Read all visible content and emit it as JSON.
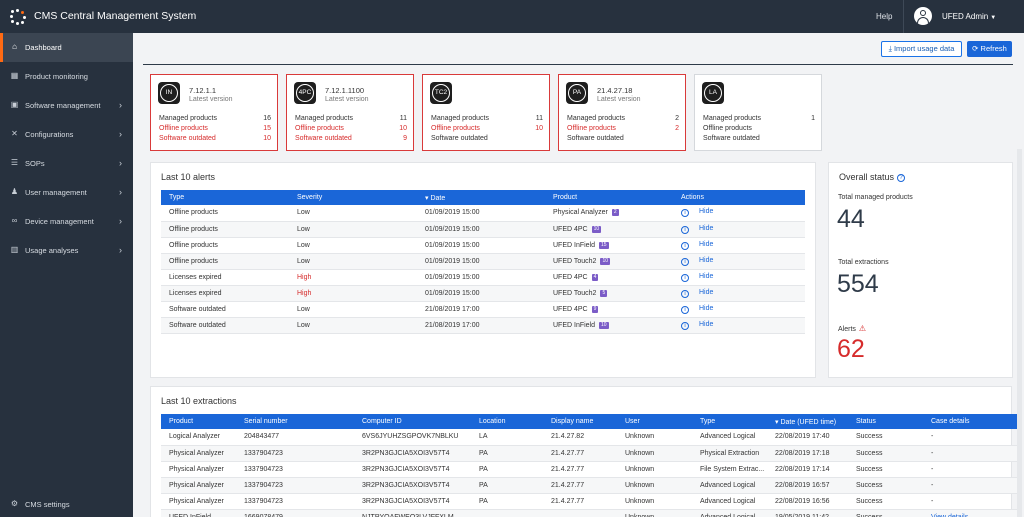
{
  "app": {
    "title": "CMS Central Management System",
    "help": "Help",
    "user": "UFED Admin"
  },
  "sidebar": {
    "items": [
      {
        "label": "Dashboard",
        "icon": "home-icon",
        "active": true
      },
      {
        "label": "Product monitoring",
        "icon": "grid-icon"
      },
      {
        "label": "Software management",
        "icon": "box-icon",
        "chevron": true
      },
      {
        "label": "Configurations",
        "icon": "tools-icon",
        "chevron": true
      },
      {
        "label": "SOPs",
        "icon": "list-icon",
        "chevron": true
      },
      {
        "label": "User management",
        "icon": "user-icon",
        "chevron": true
      },
      {
        "label": "Device management",
        "icon": "link-icon",
        "chevron": true
      },
      {
        "label": "Usage analyses",
        "icon": "bar-chart-icon",
        "chevron": true
      }
    ],
    "settings": "CMS settings"
  },
  "toolbar": {
    "import_label": "Import usage data",
    "refresh_label": "Refresh"
  },
  "products": [
    {
      "code": "IN",
      "version": "7.12.1.1",
      "latest": "Latest version",
      "managed_label": "Managed products",
      "managed": "16",
      "offline_label": "Offline products",
      "offline": "15",
      "outdated_label": "Software outdated",
      "outdated": "10"
    },
    {
      "code": "4PC",
      "version": "7.12.1.1100",
      "latest": "Latest version",
      "managed_label": "Managed products",
      "managed": "11",
      "offline_label": "Offline products",
      "offline": "10",
      "outdated_label": "Software outdated",
      "outdated": "9"
    },
    {
      "code": "TC2",
      "version": "",
      "latest": "",
      "managed_label": "Managed products",
      "managed": "11",
      "offline_label": "Offline products",
      "offline": "10",
      "outdated_label": "Software outdated",
      "outdated": ""
    },
    {
      "code": "PA",
      "version": "21.4.27.18",
      "latest": "Latest version",
      "managed_label": "Managed products",
      "managed": "2",
      "offline_label": "Offline products",
      "offline": "2",
      "outdated_label": "Software outdated",
      "outdated": ""
    },
    {
      "code": "LA",
      "version": "",
      "latest": "",
      "managed_label": "Managed products",
      "managed": "1",
      "offline_label": "Offline products",
      "offline": "",
      "outdated_label": "Software outdated",
      "outdated": ""
    }
  ],
  "alerts": {
    "title": "Last 10 alerts",
    "columns": [
      "Type",
      "Severity",
      "Date",
      "Product",
      "Actions"
    ],
    "action_label": "Hide",
    "rows": [
      {
        "type": "Offline products",
        "severity": "Low",
        "date": "01/09/2019 15:00",
        "product": "Physical Analyzer",
        "badge": "2"
      },
      {
        "type": "Offline products",
        "severity": "Low",
        "date": "01/09/2019 15:00",
        "product": "UFED 4PC",
        "badge": "10"
      },
      {
        "type": "Offline products",
        "severity": "Low",
        "date": "01/09/2019 15:00",
        "product": "UFED InField",
        "badge": "15"
      },
      {
        "type": "Offline products",
        "severity": "Low",
        "date": "01/09/2019 15:00",
        "product": "UFED Touch2",
        "badge": "10"
      },
      {
        "type": "Licenses expired",
        "severity": "High",
        "date": "01/09/2019 15:00",
        "product": "UFED 4PC",
        "badge": "4"
      },
      {
        "type": "Licenses expired",
        "severity": "High",
        "date": "01/09/2019 15:00",
        "product": "UFED Touch2",
        "badge": "5"
      },
      {
        "type": "Software outdated",
        "severity": "Low",
        "date": "21/08/2019 17:00",
        "product": "UFED 4PC",
        "badge": "9"
      },
      {
        "type": "Software outdated",
        "severity": "Low",
        "date": "21/08/2019 17:00",
        "product": "UFED InField",
        "badge": "10"
      }
    ]
  },
  "overall": {
    "title": "Overall status",
    "managed_label": "Total managed products",
    "managed": "44",
    "extractions_label": "Total extractions",
    "extractions": "554",
    "alerts_label": "Alerts",
    "alerts": "62"
  },
  "extractions": {
    "title": "Last 10 extractions",
    "columns": [
      "Product",
      "Serial number",
      "Computer ID",
      "Location",
      "Display name",
      "User",
      "Type",
      "Date (UFED time)",
      "Status",
      "Case details"
    ],
    "rows": [
      [
        "Logical Analyzer",
        "204843477",
        "6VS6JYUHZSGPOVK7NBLKU",
        "LA",
        "21.4.27.82",
        "Unknown",
        "Advanced Logical",
        "22/08/2019 17:40",
        "Success",
        "-"
      ],
      [
        "Physical Analyzer",
        "1337904723",
        "3R2PN3GJCIA5XOI3V57T4",
        "PA",
        "21.4.27.77",
        "Unknown",
        "Physical Extraction",
        "22/08/2019 17:18",
        "Success",
        "-"
      ],
      [
        "Physical Analyzer",
        "1337904723",
        "3R2PN3GJCIA5XOI3V57T4",
        "PA",
        "21.4.27.77",
        "Unknown",
        "File System Extrac...",
        "22/08/2019 17:14",
        "Success",
        "-"
      ],
      [
        "Physical Analyzer",
        "1337904723",
        "3R2PN3GJCIA5XOI3V57T4",
        "PA",
        "21.4.27.77",
        "Unknown",
        "Advanced Logical",
        "22/08/2019 16:57",
        "Success",
        "-"
      ],
      [
        "Physical Analyzer",
        "1337904723",
        "3R2PN3GJCIA5XOI3V57T4",
        "PA",
        "21.4.27.77",
        "Unknown",
        "Advanced Logical",
        "22/08/2019 16:56",
        "Success",
        "-"
      ],
      [
        "UFED InField",
        "1669078479",
        "NJTPYOAFWEO3LVJFFXLM",
        "",
        "",
        "Unknown",
        "Advanced Logical",
        "19/05/2019 11:42",
        "Success",
        "View details"
      ]
    ]
  }
}
